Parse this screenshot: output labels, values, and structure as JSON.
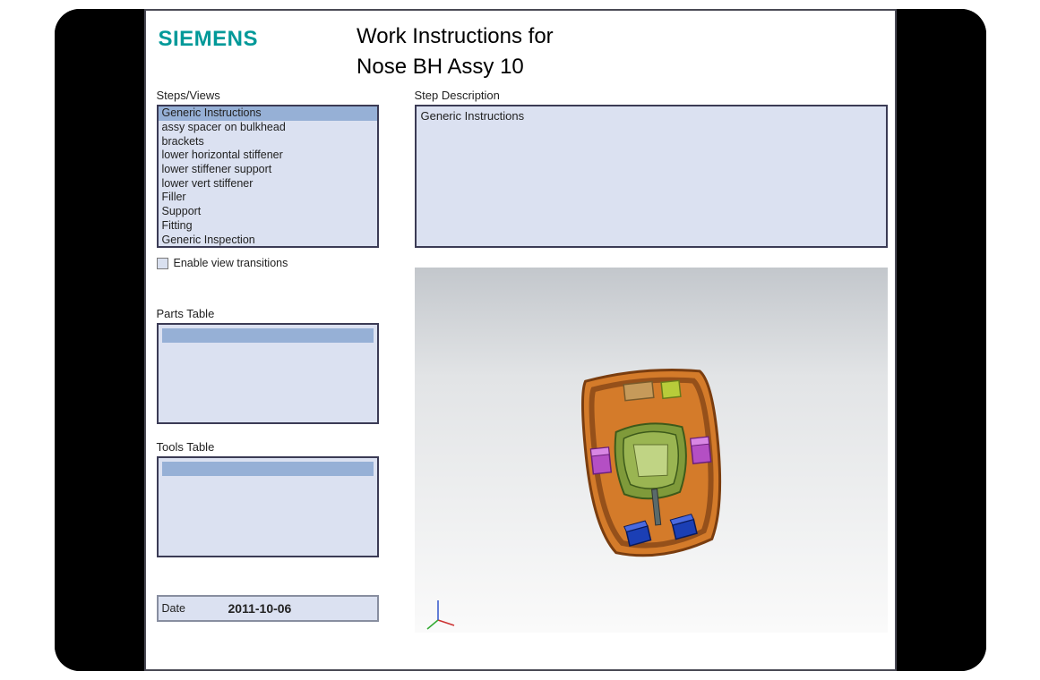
{
  "logo_text": "SIEMENS",
  "title_line1": "Work Instructions for",
  "title_line2": "Nose BH Assy 10",
  "labels": {
    "steps": "Steps/Views",
    "desc": "Step Description",
    "enable_transitions": "Enable view transitions",
    "parts": "Parts Table",
    "tools": "Tools Table",
    "date": "Date"
  },
  "steps": {
    "selected_index": 0,
    "items": [
      "Generic Instructions",
      "assy spacer on bulkhead",
      "brackets",
      "lower horizontal stiffener",
      "lower stiffener support",
      "lower vert stiffener",
      "Filler",
      "Support",
      "Fitting",
      "Generic Inspection"
    ]
  },
  "step_description": "Generic Instructions",
  "date_value": "2011-10-06",
  "colors": {
    "brand": "#009999",
    "panel_bg": "#dbe1f1",
    "panel_border": "#3b3b55",
    "selected_bg": "#96b0d6",
    "viewer_top": "#c3c7cc",
    "viewer_bottom": "#fafafa"
  },
  "model": {
    "body_fill": "#d47b2a",
    "body_stroke": "#7a3d0f",
    "inner_fill": "#7f9a3a",
    "inner_stroke": "#3d5a1a",
    "bracket_fill": "#b44fc4",
    "blue_block": "#1b3fb5",
    "tan_block": "#c69a5a",
    "lime_block": "#b8cc3a",
    "axis_x": "#cc3333",
    "axis_y": "#3355cc",
    "axis_z": "#33aa33"
  }
}
